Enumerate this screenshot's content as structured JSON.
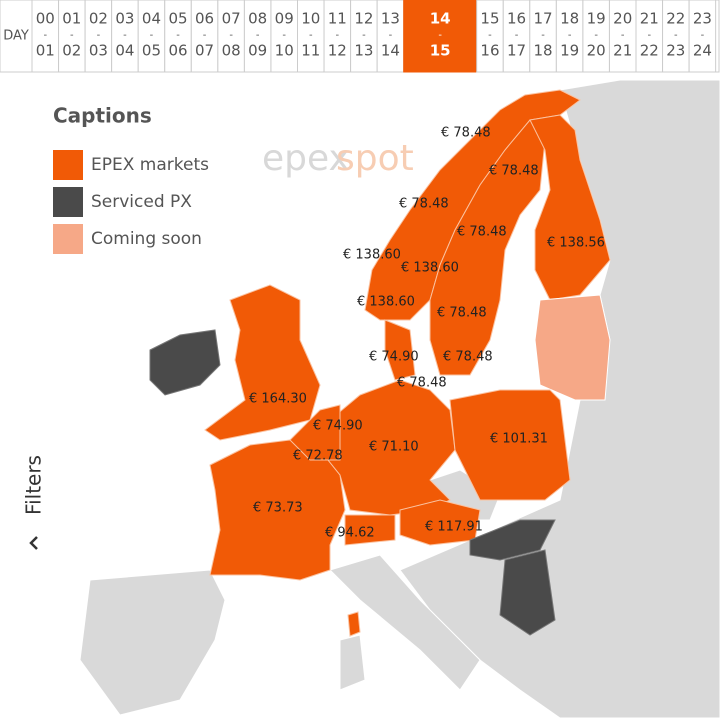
{
  "hour_bar": {
    "day_label": "DAY",
    "separator": "-",
    "selected_index": 14,
    "hours": [
      {
        "from": "00",
        "to": "01"
      },
      {
        "from": "01",
        "to": "02"
      },
      {
        "from": "02",
        "to": "03"
      },
      {
        "from": "03",
        "to": "04"
      },
      {
        "from": "04",
        "to": "05"
      },
      {
        "from": "05",
        "to": "06"
      },
      {
        "from": "06",
        "to": "07"
      },
      {
        "from": "07",
        "to": "08"
      },
      {
        "from": "08",
        "to": "09"
      },
      {
        "from": "09",
        "to": "10"
      },
      {
        "from": "10",
        "to": "11"
      },
      {
        "from": "11",
        "to": "12"
      },
      {
        "from": "12",
        "to": "13"
      },
      {
        "from": "13",
        "to": "14"
      },
      {
        "from": "14",
        "to": "15"
      },
      {
        "from": "15",
        "to": "16"
      },
      {
        "from": "16",
        "to": "17"
      },
      {
        "from": "17",
        "to": "18"
      },
      {
        "from": "18",
        "to": "19"
      },
      {
        "from": "19",
        "to": "20"
      },
      {
        "from": "20",
        "to": "21"
      },
      {
        "from": "21",
        "to": "22"
      },
      {
        "from": "22",
        "to": "23"
      },
      {
        "from": "23",
        "to": "24"
      }
    ]
  },
  "captions": {
    "title": "Captions",
    "items": [
      {
        "label": "EPEX markets",
        "color": "#f15a06"
      },
      {
        "label": "Serviced PX",
        "color": "#4a4a4a"
      },
      {
        "label": "Coming soon",
        "color": "#f6a887"
      }
    ]
  },
  "watermark": {
    "part1": "epex",
    "part2": "spot"
  },
  "filters": {
    "label": "Filters"
  },
  "prices": [
    "€ 78.48",
    "€ 78.48",
    "€ 78.48",
    "€ 78.48",
    "€ 138.56",
    "€ 138.60",
    "€ 138.60",
    "€ 138.60",
    "€ 78.48",
    "€ 74.90",
    "€ 78.48",
    "€ 78.48",
    "€ 164.30",
    "€ 74.90",
    "€ 71.10",
    "€ 101.31",
    "€ 72.78",
    "€ 73.73",
    "€ 94.62",
    "€ 117.91"
  ]
}
